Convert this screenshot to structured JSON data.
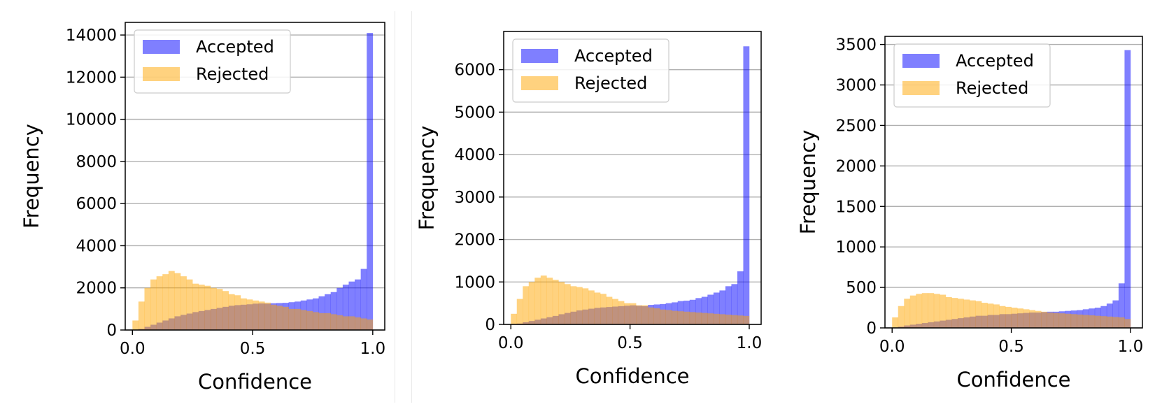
{
  "chart_data": [
    {
      "type": "bar",
      "xlabel": "Confidence",
      "ylabel": "Frequency",
      "xlim": [
        -0.03,
        1.05
      ],
      "xticks": [
        0.0,
        0.5,
        1.0
      ],
      "xtick_labels": [
        "0.0",
        "0.5",
        "1.0"
      ],
      "ylim": [
        0,
        14600
      ],
      "yticks": [
        0,
        2000,
        4000,
        6000,
        8000,
        10000,
        12000,
        14000
      ],
      "grid": "horizontal",
      "legend": "top-left",
      "bin_width": 0.025,
      "series": [
        {
          "name": "Accepted",
          "color": "#0000ff",
          "opacity": 0.5,
          "values": [
            20,
            50,
            150,
            250,
            350,
            450,
            550,
            650,
            720,
            780,
            850,
            900,
            950,
            1000,
            1050,
            1100,
            1150,
            1180,
            1200,
            1220,
            1250,
            1260,
            1250,
            1270,
            1280,
            1290,
            1320,
            1350,
            1400,
            1450,
            1500,
            1600,
            1700,
            1800,
            2000,
            2150,
            2300,
            2400,
            2900,
            14100
          ]
        },
        {
          "name": "Rejected",
          "color": "#ffa500",
          "opacity": 0.5,
          "values": [
            450,
            1350,
            2000,
            2400,
            2550,
            2650,
            2800,
            2700,
            2550,
            2400,
            2200,
            2150,
            2100,
            2000,
            1950,
            1850,
            1700,
            1650,
            1500,
            1450,
            1400,
            1350,
            1300,
            1200,
            1150,
            1100,
            1000,
            1000,
            950,
            900,
            850,
            800,
            800,
            750,
            700,
            650,
            650,
            600,
            550,
            500
          ]
        }
      ]
    },
    {
      "type": "bar",
      "xlabel": "Confidence",
      "ylabel": "Frequency",
      "xlim": [
        -0.03,
        1.05
      ],
      "xticks": [
        0.0,
        0.5,
        1.0
      ],
      "xtick_labels": [
        "0.0",
        "0.5",
        "1.0"
      ],
      "ylim": [
        0,
        6900
      ],
      "yticks": [
        0,
        1000,
        2000,
        3000,
        4000,
        5000,
        6000
      ],
      "grid": "horizontal",
      "legend": "top-left",
      "bin_width": 0.025,
      "series": [
        {
          "name": "Accepted",
          "color": "#0000ff",
          "opacity": 0.5,
          "values": [
            10,
            20,
            50,
            80,
            110,
            140,
            170,
            200,
            240,
            270,
            300,
            330,
            350,
            370,
            390,
            400,
            410,
            420,
            430,
            440,
            450,
            440,
            430,
            460,
            470,
            480,
            500,
            520,
            550,
            560,
            580,
            620,
            650,
            700,
            750,
            800,
            900,
            950,
            1250,
            6550
          ]
        },
        {
          "name": "Rejected",
          "color": "#ffa500",
          "opacity": 0.5,
          "values": [
            250,
            600,
            900,
            1000,
            1100,
            1150,
            1100,
            1050,
            1000,
            950,
            900,
            880,
            850,
            800,
            750,
            720,
            650,
            600,
            550,
            500,
            500,
            450,
            450,
            400,
            380,
            350,
            340,
            320,
            310,
            300,
            290,
            280,
            270,
            260,
            250,
            240,
            230,
            220,
            210,
            200
          ]
        }
      ]
    },
    {
      "type": "bar",
      "xlabel": "Confidence",
      "ylabel": "Frequency",
      "xlim": [
        -0.03,
        1.05
      ],
      "xticks": [
        0.0,
        0.5,
        1.0
      ],
      "xtick_labels": [
        "0.0",
        "0.5",
        "1.0"
      ],
      "ylim": [
        0,
        3600
      ],
      "yticks": [
        0,
        500,
        1000,
        1500,
        2000,
        2500,
        3000,
        3500
      ],
      "grid": "horizontal",
      "legend": "top-left",
      "bin_width": 0.025,
      "series": [
        {
          "name": "Accepted",
          "color": "#0000ff",
          "opacity": 0.5,
          "values": [
            5,
            15,
            30,
            40,
            50,
            60,
            70,
            80,
            90,
            100,
            110,
            120,
            130,
            140,
            150,
            150,
            160,
            160,
            170,
            170,
            175,
            180,
            185,
            190,
            190,
            195,
            200,
            200,
            205,
            210,
            215,
            220,
            230,
            240,
            250,
            270,
            300,
            340,
            550,
            3430
          ]
        },
        {
          "name": "Rejected",
          "color": "#ffa500",
          "opacity": 0.5,
          "values": [
            130,
            270,
            360,
            400,
            420,
            430,
            430,
            420,
            410,
            380,
            370,
            360,
            350,
            340,
            330,
            310,
            300,
            290,
            270,
            260,
            250,
            240,
            230,
            220,
            210,
            200,
            190,
            185,
            180,
            175,
            170,
            165,
            160,
            155,
            150,
            145,
            140,
            135,
            130,
            110
          ]
        }
      ]
    }
  ]
}
